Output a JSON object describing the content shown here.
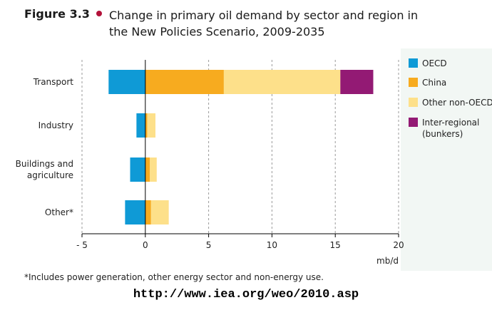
{
  "figure": {
    "label": "Figure 3.3",
    "title": "Change in primary oil demand by sector and region in the New Policies Scenario, 2009-2035",
    "footnote": "*Includes power generation, other energy sector and non-energy use.",
    "url": "http://www.iea.org/weo/2010.asp",
    "accent_color": "#b3123a"
  },
  "chart_data": {
    "type": "bar",
    "orientation": "horizontal",
    "stacked": true,
    "categories": [
      "Transport",
      "Industry",
      "Buildings and\nagriculture",
      "Other*"
    ],
    "series": [
      {
        "name": "OECD",
        "color": "#0f9ad6",
        "values": [
          -2.9,
          -0.7,
          -1.2,
          -1.6
        ]
      },
      {
        "name": "China",
        "color": "#f7ab1f",
        "values": [
          6.2,
          0.15,
          0.35,
          0.45
        ]
      },
      {
        "name": "Other non-OECD",
        "color": "#fde08a",
        "values": [
          9.2,
          0.65,
          0.55,
          1.4
        ]
      },
      {
        "name": "Inter-regional\n(bunkers)",
        "color": "#931a74",
        "values": [
          2.6,
          0,
          0,
          0
        ]
      }
    ],
    "xlim": [
      -5,
      20
    ],
    "xticks": [
      -5,
      0,
      5,
      10,
      15,
      20
    ],
    "xtick_labels": [
      "- 5",
      "0",
      "5",
      "10",
      "15",
      "20"
    ],
    "xlabel": "mb/d",
    "grid": "vertical dashed",
    "legend_position": "right"
  }
}
